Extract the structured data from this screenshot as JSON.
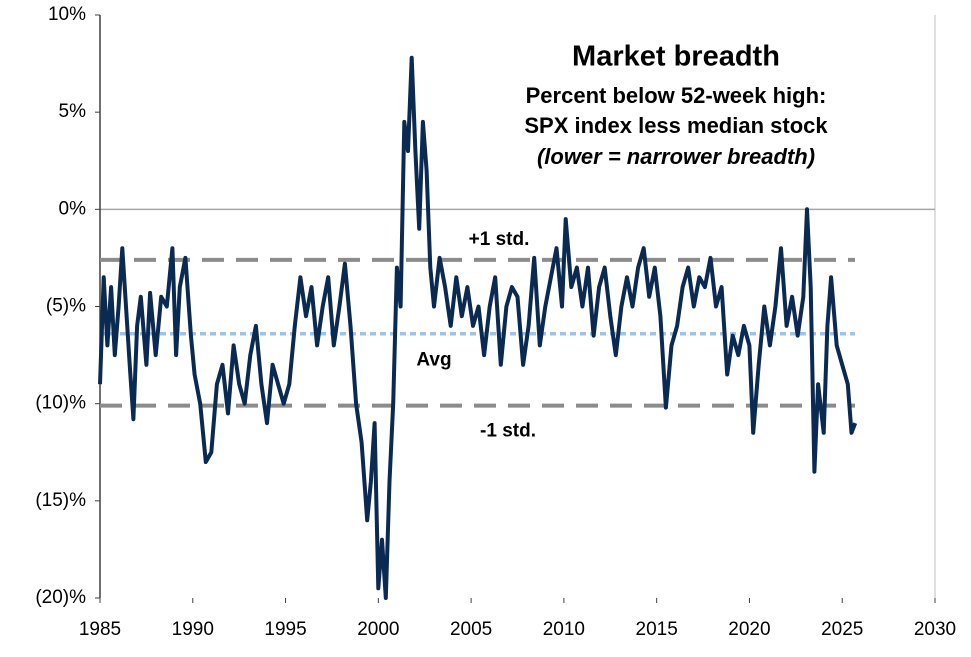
{
  "chart_data": {
    "type": "line",
    "title": "Market breadth",
    "subtitle": [
      "Percent below 52-week high:",
      "SPX index less median stock",
      "(lower = narrower breadth)"
    ],
    "xlim": [
      1985,
      2030
    ],
    "xticks": [
      1985,
      1990,
      1995,
      2000,
      2005,
      2010,
      2015,
      2020,
      2025,
      2030
    ],
    "ylim": [
      -20,
      10
    ],
    "yticks": [
      {
        "value": -20,
        "label": "(20)%"
      },
      {
        "value": -15,
        "label": "(15)%"
      },
      {
        "value": -10,
        "label": "(10)%"
      },
      {
        "value": -5,
        "label": "(5)%"
      },
      {
        "value": 0,
        "label": "0%"
      },
      {
        "value": 5,
        "label": "5%"
      },
      {
        "value": 10,
        "label": "10%"
      }
    ],
    "reference_lines": [
      {
        "name": "+1 std.",
        "value": -2.6,
        "color": "#8c8c8c",
        "style": "dashed"
      },
      {
        "name": "Avg",
        "value": -6.4,
        "color": "#9dc3e6",
        "style": "dotted"
      },
      {
        "name": "-1 std.",
        "value": -10.1,
        "color": "#8c8c8c",
        "style": "dashed"
      }
    ],
    "series": [
      {
        "color": "#0b2a52",
        "x": [
          1985.0,
          1985.2,
          1985.4,
          1985.6,
          1985.8,
          1986.0,
          1986.2,
          1986.4,
          1986.6,
          1986.8,
          1987.0,
          1987.2,
          1987.5,
          1987.7,
          1988.0,
          1988.3,
          1988.6,
          1988.9,
          1989.1,
          1989.3,
          1989.6,
          1989.9,
          1990.1,
          1990.4,
          1990.7,
          1991.0,
          1991.3,
          1991.6,
          1991.9,
          1992.2,
          1992.5,
          1992.8,
          1993.1,
          1993.4,
          1993.7,
          1994.0,
          1994.3,
          1994.6,
          1994.9,
          1995.2,
          1995.5,
          1995.8,
          1996.1,
          1996.4,
          1996.7,
          1997.0,
          1997.3,
          1997.6,
          1997.9,
          1998.2,
          1998.5,
          1998.8,
          1999.1,
          1999.4,
          1999.6,
          1999.8,
          2000.0,
          2000.2,
          2000.4,
          2000.6,
          2000.8,
          2001.0,
          2001.2,
          2001.4,
          2001.6,
          2001.8,
          2002.0,
          2002.2,
          2002.4,
          2002.6,
          2002.8,
          2003.0,
          2003.3,
          2003.6,
          2003.9,
          2004.2,
          2004.5,
          2004.8,
          2005.1,
          2005.4,
          2005.7,
          2006.0,
          2006.3,
          2006.6,
          2006.9,
          2007.2,
          2007.5,
          2007.8,
          2008.1,
          2008.4,
          2008.7,
          2009.0,
          2009.3,
          2009.6,
          2009.9,
          2010.1,
          2010.4,
          2010.7,
          2011.0,
          2011.3,
          2011.6,
          2011.9,
          2012.2,
          2012.5,
          2012.8,
          2013.1,
          2013.4,
          2013.7,
          2014.0,
          2014.3,
          2014.6,
          2014.9,
          2015.2,
          2015.5,
          2015.8,
          2016.1,
          2016.4,
          2016.7,
          2017.0,
          2017.3,
          2017.6,
          2017.9,
          2018.2,
          2018.5,
          2018.8,
          2019.1,
          2019.4,
          2019.7,
          2020.0,
          2020.2,
          2020.5,
          2020.8,
          2021.1,
          2021.4,
          2021.7,
          2022.0,
          2022.3,
          2022.6,
          2022.9,
          2023.1,
          2023.3,
          2023.5,
          2023.7,
          2024.0,
          2024.2,
          2024.4,
          2024.7,
          2025.0,
          2025.3,
          2025.5,
          2025.7
        ],
        "values": [
          -9,
          -3.5,
          -7,
          -4,
          -7.5,
          -5,
          -2,
          -5,
          -8,
          -10.8,
          -6,
          -4.5,
          -8,
          -4.3,
          -7.5,
          -4.5,
          -5,
          -2,
          -7.5,
          -4,
          -2.5,
          -6.5,
          -8.5,
          -10,
          -13,
          -12.5,
          -9,
          -8,
          -10.5,
          -7,
          -9,
          -10,
          -7.5,
          -6,
          -9,
          -11,
          -8,
          -9,
          -10,
          -9,
          -6,
          -3.5,
          -5.5,
          -4,
          -7,
          -5,
          -3.5,
          -7,
          -5,
          -2.8,
          -6,
          -10,
          -12,
          -16,
          -14,
          -11,
          -19.5,
          -17,
          -20,
          -14,
          -10,
          -3,
          -5,
          4.5,
          3,
          7.8,
          3,
          -1,
          4.5,
          2,
          -3,
          -5,
          -2.5,
          -4,
          -6,
          -3.5,
          -5.5,
          -4,
          -6,
          -5,
          -7.5,
          -5,
          -3.5,
          -8,
          -5,
          -4,
          -4.5,
          -8,
          -6,
          -2.5,
          -7,
          -5,
          -3.5,
          -2,
          -5,
          -0.5,
          -4,
          -3,
          -5,
          -3,
          -6.5,
          -4,
          -3,
          -5.5,
          -7.5,
          -5,
          -3.5,
          -5,
          -3,
          -2,
          -4.5,
          -3,
          -5.5,
          -10.2,
          -7,
          -6,
          -4,
          -3,
          -5,
          -3.5,
          -4,
          -2.5,
          -5,
          -4,
          -8.5,
          -6.5,
          -7.5,
          -6,
          -7,
          -11.5,
          -8,
          -5,
          -7,
          -5,
          -2,
          -6,
          -4.5,
          -6.5,
          -4.5,
          0,
          -4,
          -13.5,
          -9,
          -11.5,
          -6,
          -3.5,
          -7,
          -8,
          -9,
          -11.5,
          -11
        ]
      }
    ]
  }
}
